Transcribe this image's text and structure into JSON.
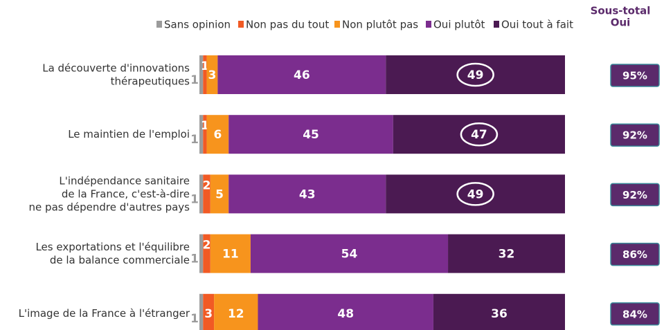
{
  "chart_data": {
    "type": "stacked-bar-horizontal",
    "categories": [
      "La découverte d'innovations\nthérapeutiques",
      "Le maintien de l'emploi",
      "L'indépendance sanitaire\nde la France, c'est-à-dire\nne pas dépendre d'autres pays",
      "Les exportations et l'équilibre\nde la balance commerciale",
      "L'image de la France à l'étranger"
    ],
    "series": [
      {
        "name": "Sans opinion",
        "color": "#9b9b9b",
        "values": [
          1,
          1,
          1,
          1,
          1
        ]
      },
      {
        "name": "Non pas du tout",
        "color": "#f15a24",
        "values": [
          1,
          1,
          2,
          2,
          3
        ]
      },
      {
        "name": "Non plutôt pas",
        "color": "#f7941d",
        "values": [
          3,
          6,
          5,
          11,
          12
        ]
      },
      {
        "name": "Oui plutôt",
        "color": "#7b2d8e",
        "values": [
          46,
          45,
          43,
          54,
          48
        ]
      },
      {
        "name": "Oui tout à fait",
        "color": "#4b1a52",
        "values": [
          49,
          47,
          49,
          32,
          36
        ]
      }
    ],
    "circled": [
      [
        4,
        0
      ],
      [
        4,
        1
      ],
      [
        4,
        2
      ]
    ],
    "subtotal": {
      "title": "Sous-total\nOui",
      "values": [
        95,
        92,
        92,
        86,
        84
      ],
      "value_labels": [
        "95%",
        "92%",
        "92%",
        "86%",
        "84%"
      ]
    }
  }
}
